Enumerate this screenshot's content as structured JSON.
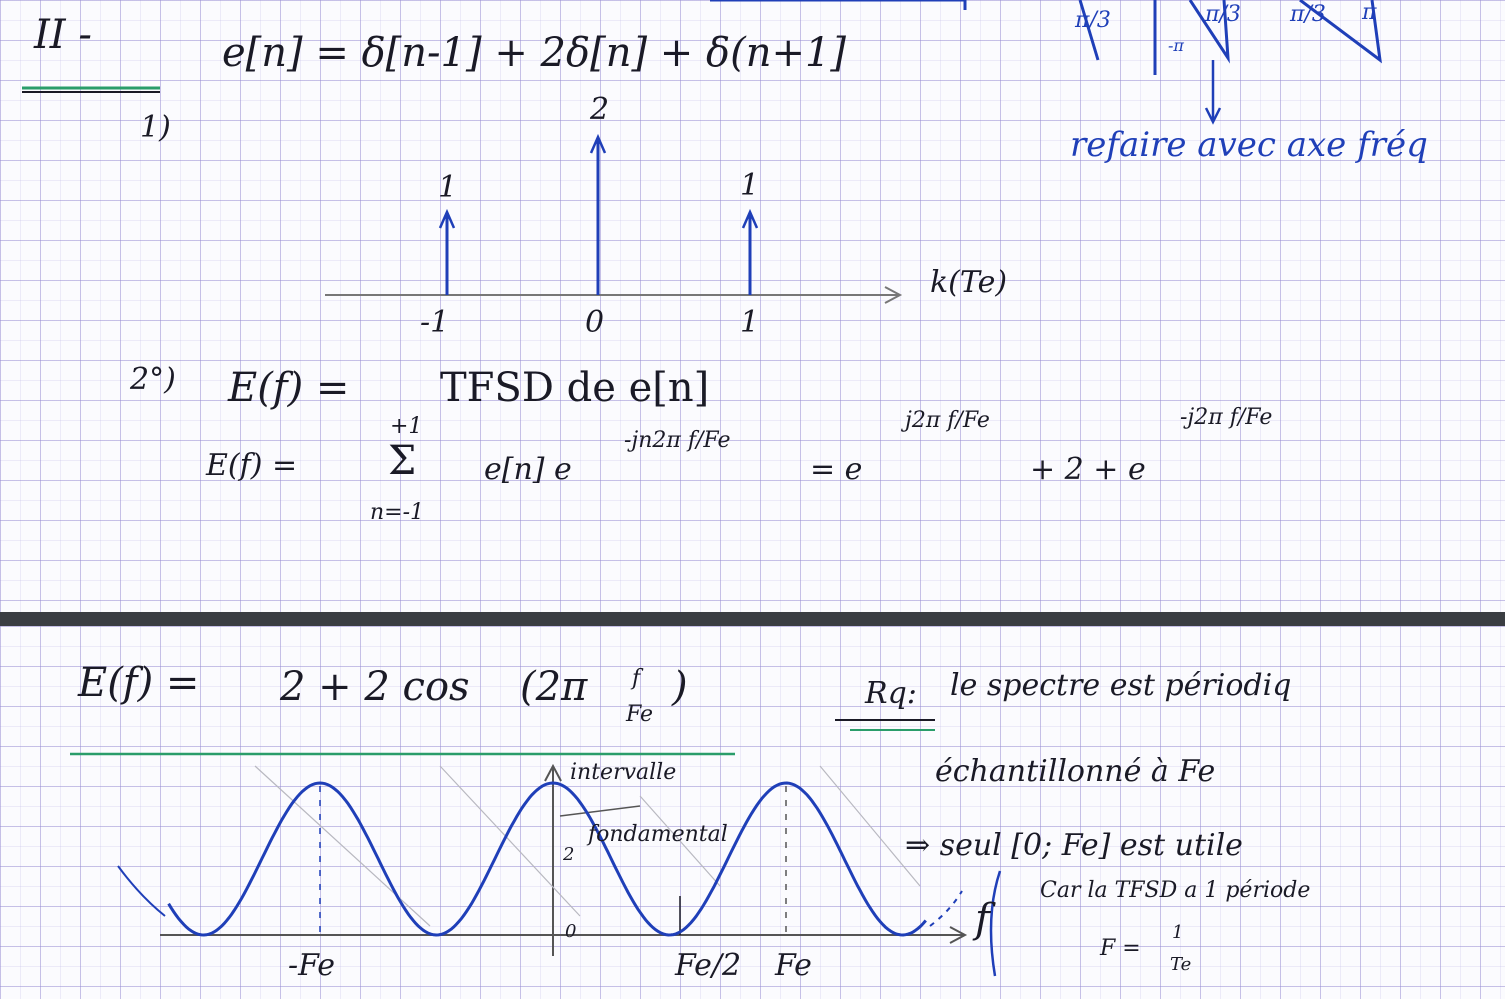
{
  "part1": {
    "section_label": "II -",
    "q1_label": "1)",
    "signal_eq": "e[n] = δ[n-1] + 2δ[n] + δ(n+1]",
    "stems": [
      {
        "n": "-1",
        "value_label": "1",
        "value": 1
      },
      {
        "n": "0",
        "value_label": "2",
        "value": 2
      },
      {
        "n": "1",
        "value_label": "1",
        "value": 1
      }
    ],
    "axis_label": "k(Te)",
    "top_fragments": [
      "π/3",
      "-π",
      "π/3",
      "π/3",
      "π"
    ],
    "note_blue": "refaire avec axe fréq",
    "q2_label": "2°)",
    "ef_def_lhs": "E(f) =",
    "ef_def_rhs": "TFSD de e[n]",
    "sum_lhs": "E(f) =",
    "sum_symbol": "Σ",
    "sum_upper": "+1",
    "sum_lower": "n=-1",
    "sum_term": "e[n] e",
    "sum_term_exp": "-jn2π f/Fe",
    "expansion_eq": "= e",
    "expansion_exp1": "j2π f/Fe",
    "expansion_mid": "+ 2 + e",
    "expansion_exp2": "-j2π f/Fe"
  },
  "part2": {
    "result_lhs": "E(f) =",
    "result_rhs": "2 + 2 cos",
    "result_arg_prefix": "(2π",
    "result_arg_frac_num": "f",
    "result_arg_frac_den": "Fe",
    "result_arg_close": ")",
    "remark_label": "Rq:",
    "remark_line1": "le spectre est périodiq",
    "remark_line2": "échantillonné à Fe",
    "remark_line3": "⇒ seul [0; Fe] est utile",
    "remark_line4": "Car la TFSD a 1 période",
    "period_formula_lhs": "F =",
    "period_num": "1",
    "period_den": "Te",
    "interval_label_1": "intervalle",
    "interval_label_2": "fondamental",
    "plot_y_max": "2",
    "plot_origin": "0",
    "plot_x_neg_fe": "-Fe",
    "plot_x_half_fe": "Fe/2",
    "plot_x_fe": "Fe",
    "plot_axis_label": "f"
  },
  "chart_data": {
    "type": "line",
    "series": [
      {
        "x": [
          -1.5,
          -1.25,
          -1.0,
          -0.75,
          -0.5,
          -0.25,
          0.0,
          0.25,
          0.5,
          0.75,
          1.0,
          1.25,
          1.5
        ],
        "values": [
          0,
          2,
          4,
          2,
          0,
          2,
          4,
          2,
          0,
          2,
          4,
          2,
          0
        ]
      }
    ],
    "x_tick_labels": [
      "-Fe",
      "0",
      "Fe/2",
      "Fe"
    ],
    "x_ticks": [
      -1.0,
      0.0,
      0.5,
      1.0
    ],
    "y_tick_labels": [
      "0",
      "2"
    ],
    "xlabel": "f",
    "ylabel": "",
    "title": "",
    "xlim": [
      -1.6,
      1.6
    ],
    "ylim": [
      0,
      4.2
    ],
    "grid": true,
    "colors": {
      "curve": "#1f3fb8",
      "axis": "#444444",
      "underline_green": "#2a9d6a"
    }
  }
}
